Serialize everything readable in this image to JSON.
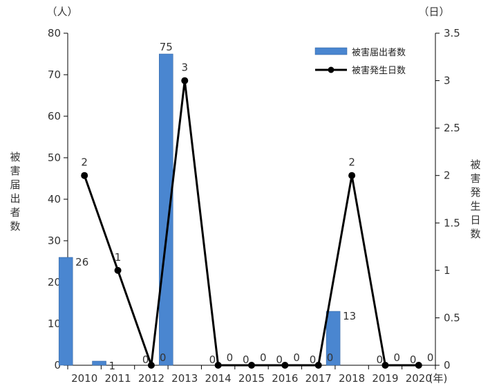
{
  "chart_data": {
    "type": "bar",
    "categories": [
      "2010",
      "2011",
      "2012",
      "2013",
      "2014",
      "2015",
      "2016",
      "2017",
      "2018",
      "2019",
      "2020"
    ],
    "x_unit": "(年)",
    "series": [
      {
        "name": "被害届出者数",
        "kind": "bar",
        "axis": "left",
        "color": "#4a86d0",
        "values": [
          26,
          1,
          0,
          75,
          0,
          0,
          0,
          0,
          13,
          0,
          0
        ]
      },
      {
        "name": "被害発生日数",
        "kind": "line",
        "axis": "right",
        "color": "#000000",
        "values": [
          2,
          1,
          0,
          3,
          0,
          0,
          0,
          0,
          2,
          0,
          0
        ]
      }
    ],
    "left_axis": {
      "label": "被害届出者数",
      "unit": "（人）",
      "ylim": [
        0,
        80
      ],
      "ticks": [
        "0",
        "10",
        "20",
        "30",
        "40",
        "50",
        "60",
        "70",
        "80"
      ]
    },
    "right_axis": {
      "label": "被害発生日数",
      "unit": "（日）",
      "ylim": [
        0,
        3.5
      ],
      "ticks": [
        "0",
        "0.5",
        "1",
        "1.5",
        "2",
        "2.5",
        "3",
        "3.5"
      ]
    },
    "legend_position": "top-right",
    "grid": false
  }
}
